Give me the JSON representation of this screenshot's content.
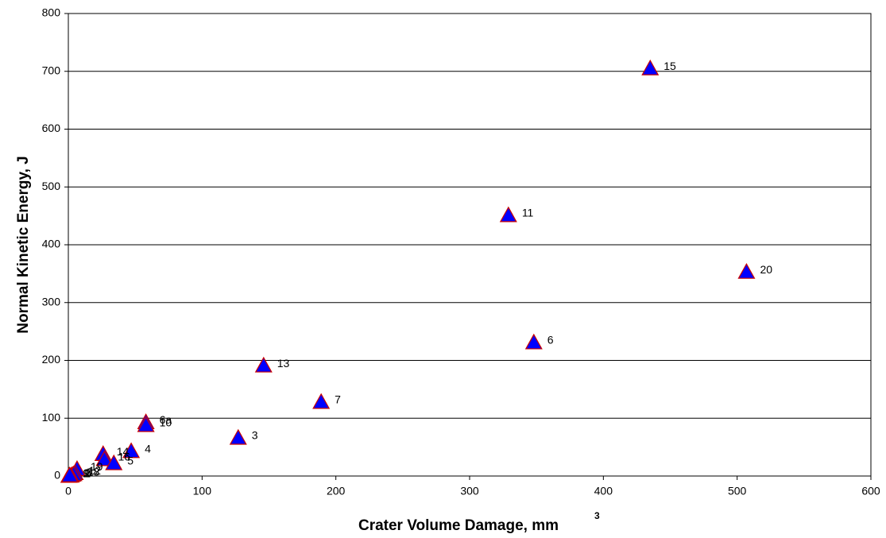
{
  "chart_data": {
    "type": "scatter",
    "x_label": "Crater Volume Damage, mm",
    "x_label_superscript": "3",
    "y_label": "Normal Kinetic Energy, J",
    "xlim": [
      0,
      600
    ],
    "xticks": [
      0,
      100,
      200,
      300,
      400,
      500,
      600
    ],
    "ylim": [
      0,
      800
    ],
    "yticks": [
      0,
      100,
      200,
      300,
      400,
      500,
      600,
      700,
      800
    ],
    "grid": true,
    "marker": "triangle",
    "color": "#0000ff",
    "edge_color": "#cc0000",
    "point_labels": [
      "15",
      "11",
      "20",
      "6",
      "13",
      "7",
      "3",
      "6a",
      "10",
      "4",
      "14",
      "16",
      "5",
      "19",
      "12",
      "8",
      "18",
      "2",
      "1",
      "9"
    ],
    "x": [
      435,
      329,
      507,
      348,
      146,
      189,
      127,
      58,
      58,
      47,
      26,
      27,
      34,
      6.5,
      5,
      3,
      4,
      2,
      0.5,
      1
    ],
    "y": [
      705,
      451,
      353,
      231,
      191,
      128,
      66,
      93,
      88,
      43,
      38,
      29,
      22,
      12,
      5,
      2,
      3,
      0.5,
      0.2,
      1
    ]
  }
}
